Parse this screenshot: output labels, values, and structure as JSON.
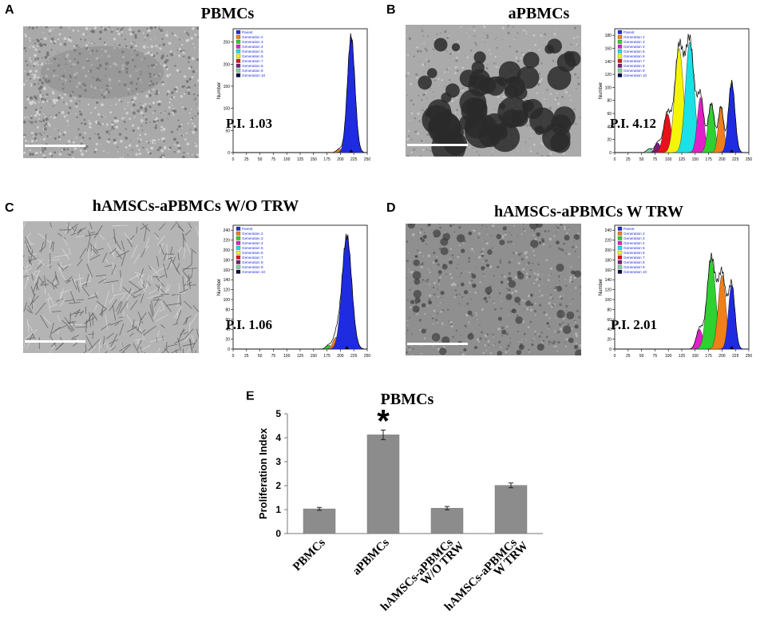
{
  "panels": [
    {
      "letter": "A",
      "title": "PBMCs",
      "pi_label": "P.I. 1.03",
      "micrograph": {
        "style": "dense-small"
      },
      "histogram": {
        "ylabel": "Number",
        "x_ticks": [
          "0",
          "25",
          "50",
          "75",
          "100",
          "125",
          "150",
          "175",
          "200",
          "225",
          "250"
        ],
        "y_ticks": [
          "0",
          "50",
          "100",
          "150",
          "200",
          "250"
        ],
        "ymax": 280,
        "legend": [
          "Parent",
          "Generation 2",
          "Generation 3",
          "Generation 4",
          "Generation 5",
          "Generation 6",
          "Generation 7",
          "Generation 8",
          "Generation 9",
          "Generation 10"
        ],
        "peaks": [
          {
            "generation": "Generation 2",
            "center": 198,
            "height": 8,
            "sigma": 5
          },
          {
            "generation": "Parent",
            "center": 220,
            "height": 262,
            "sigma": 7
          }
        ]
      }
    },
    {
      "letter": "B",
      "title": "aPBMCs",
      "pi_label": "P.I. 4.12",
      "micrograph": {
        "style": "colonies"
      },
      "histogram": {
        "ylabel": "Number",
        "x_ticks": [
          "0",
          "25",
          "50",
          "75",
          "100",
          "125",
          "150",
          "175",
          "200",
          "225",
          "250"
        ],
        "y_ticks": [
          "0",
          "20",
          "40",
          "60",
          "80",
          "100",
          "120",
          "140",
          "160",
          "180"
        ],
        "ymax": 190,
        "legend": [
          "Parent",
          "Generation 2",
          "Generation 3",
          "Generation 4",
          "Generation 5",
          "Generation 6",
          "Generation 7",
          "Generation 8",
          "Generation 9",
          "Generation 10"
        ],
        "peaks": [
          {
            "generation": "Generation 9",
            "center": 65,
            "height": 6,
            "sigma": 5
          },
          {
            "generation": "Generation 8",
            "center": 80,
            "height": 15,
            "sigma": 5
          },
          {
            "generation": "Generation 7",
            "center": 98,
            "height": 60,
            "sigma": 7
          },
          {
            "generation": "Generation 6",
            "center": 120,
            "height": 160,
            "sigma": 8
          },
          {
            "generation": "Generation 5",
            "center": 140,
            "height": 170,
            "sigma": 8
          },
          {
            "generation": "Generation 4",
            "center": 160,
            "height": 85,
            "sigma": 6
          },
          {
            "generation": "Generation 3",
            "center": 180,
            "height": 75,
            "sigma": 6
          },
          {
            "generation": "Generation 2",
            "center": 198,
            "height": 70,
            "sigma": 5
          },
          {
            "generation": "Parent",
            "center": 218,
            "height": 108,
            "sigma": 6
          }
        ]
      }
    },
    {
      "letter": "C",
      "title": "hAMSCs-aPBMCs W/O TRW",
      "pi_label": "P.I. 1.06",
      "micrograph": {
        "style": "fibrous"
      },
      "histogram": {
        "ylabel": "Number",
        "x_ticks": [
          "0",
          "25",
          "50",
          "75",
          "100",
          "125",
          "150",
          "175",
          "200",
          "225",
          "250"
        ],
        "y_ticks": [
          "0",
          "20",
          "40",
          "60",
          "80",
          "100",
          "120",
          "140",
          "160",
          "180",
          "200",
          "220",
          "240"
        ],
        "ymax": 250,
        "legend": [
          "Parent",
          "Generation 2",
          "Generation 3",
          "Generation 4",
          "Generation 5",
          "Generation 6",
          "Generation 7",
          "Generation 8",
          "Generation 9",
          "Generation 10"
        ],
        "peaks": [
          {
            "generation": "Generation 3",
            "center": 178,
            "height": 8,
            "sigma": 5
          },
          {
            "generation": "Generation 2",
            "center": 192,
            "height": 24,
            "sigma": 6
          },
          {
            "generation": "Parent",
            "center": 212,
            "height": 228,
            "sigma": 9
          }
        ]
      }
    },
    {
      "letter": "D",
      "title": "hAMSCs-aPBMCs W TRW",
      "pi_label": "P.I. 2.01",
      "micrograph": {
        "style": "sparse-dark"
      },
      "histogram": {
        "ylabel": "Number",
        "x_ticks": [
          "0",
          "25",
          "50",
          "75",
          "100",
          "125",
          "150",
          "175",
          "200",
          "225",
          "250"
        ],
        "y_ticks": [
          "0",
          "20",
          "40",
          "60",
          "80",
          "100",
          "120",
          "140",
          "160",
          "180",
          "200",
          "220",
          "240"
        ],
        "ymax": 250,
        "legend": [
          "Parent",
          "Generation 2",
          "Generation 3",
          "Generation 4",
          "Generation 5",
          "Generation 6",
          "Generation 7",
          "Generation 8",
          "Generation 9",
          "Generation 10"
        ],
        "peaks": [
          {
            "generation": "Generation 4",
            "center": 158,
            "height": 40,
            "sigma": 6
          },
          {
            "generation": "Generation 3",
            "center": 180,
            "height": 185,
            "sigma": 8
          },
          {
            "generation": "Generation 2",
            "center": 200,
            "height": 150,
            "sigma": 7
          },
          {
            "generation": "Parent",
            "center": 218,
            "height": 130,
            "sigma": 6
          }
        ]
      }
    }
  ],
  "generation_colors": {
    "Parent": "#1f2be0",
    "Generation 2": "#f07f1a",
    "Generation 3": "#2fd12f",
    "Generation 4": "#e020c8",
    "Generation 5": "#19e1e6",
    "Generation 6": "#f5f50a",
    "Generation 7": "#e8101a",
    "Generation 8": "#7a1a7a",
    "Generation 9": "#7fd6a0",
    "Generation 10": "#0a0a40"
  },
  "legend_text_color": "#1f2be0",
  "chart_data": {
    "type": "bar",
    "panel_letter": "E",
    "title": "PBMCs",
    "ylabel": "Proliferation Index",
    "xlabel": "",
    "categories": [
      "PBMCs",
      "aPBMCs",
      "hAMSCs-aPBMCs W/O TRW",
      "hAMSCs-aPBMCs W TRW"
    ],
    "category_lines": [
      [
        "PBMCs"
      ],
      [
        "aPBMCs"
      ],
      [
        "hAMSCs-aPBMCs",
        "W/O TRW"
      ],
      [
        "hAMSCs-aPBMCs",
        "W TRW"
      ]
    ],
    "values": [
      1.03,
      4.12,
      1.06,
      2.01
    ],
    "errors": [
      0.06,
      0.2,
      0.07,
      0.1
    ],
    "ylim": [
      0,
      5
    ],
    "y_ticks": [
      "0",
      "1",
      "2",
      "3",
      "4",
      "5"
    ],
    "significance": [
      {
        "category": "aPBMCs",
        "marker": "*"
      }
    ],
    "bar_color": "#8c8c8c",
    "grid": false,
    "legend": "none"
  }
}
